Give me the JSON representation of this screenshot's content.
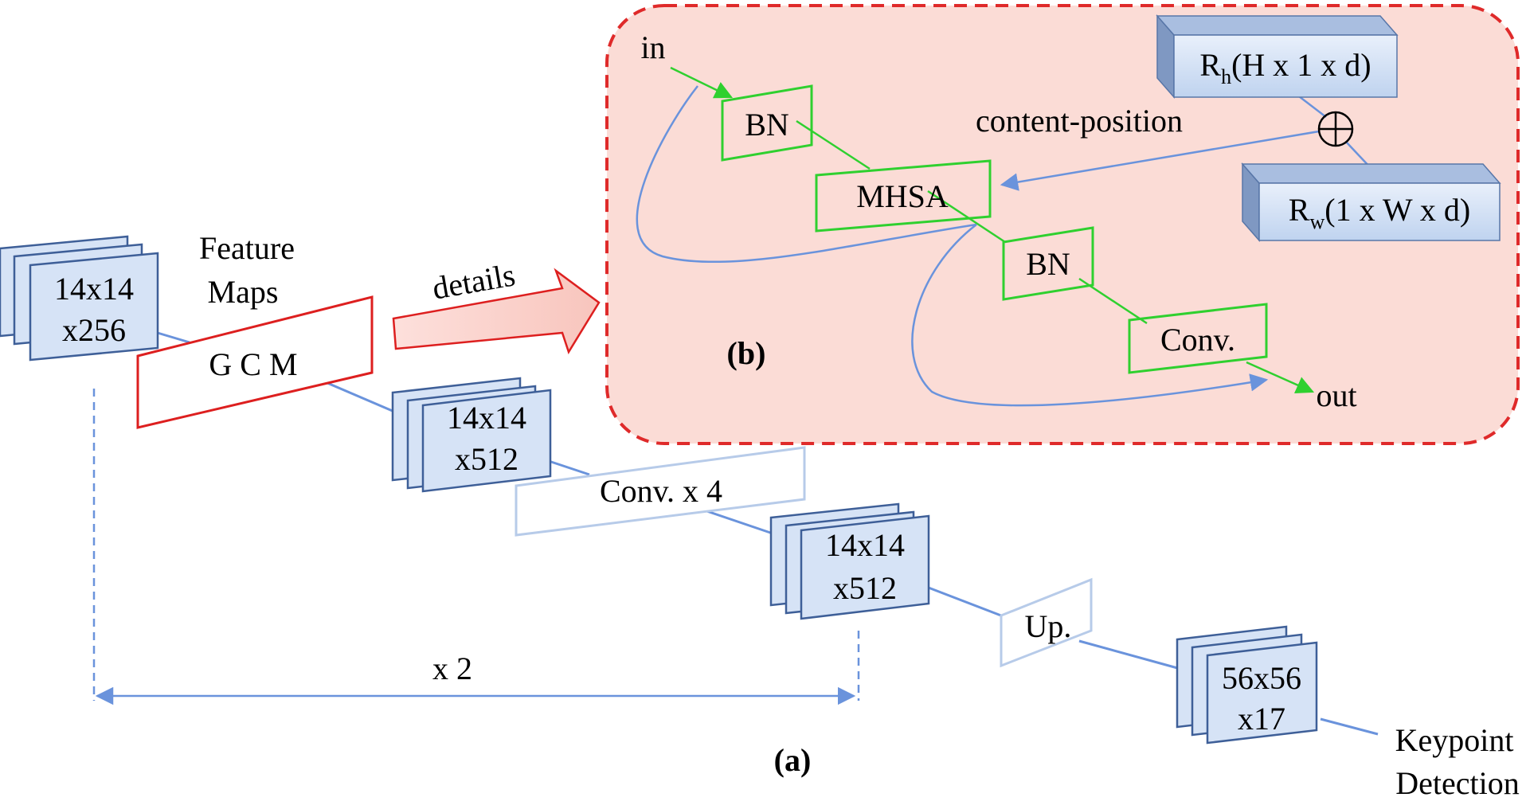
{
  "colors": {
    "block_fill": "#d6e3f6",
    "block_stroke": "#3e5f98",
    "block_top": "#a9bee0",
    "block_side": "#7f98c2",
    "blue_line": "#6a93dc",
    "faint_stroke": "#b7cbe9",
    "red": "#dd1f1f",
    "green": "#2fd02f",
    "pink_bg": "#fbdcd6",
    "dash_red": "#df2a2a"
  },
  "panel_a": {
    "label": "(a)",
    "stacks": {
      "input": {
        "line1": "14x14",
        "line2": "x256"
      },
      "gcm_out": {
        "line1": "14x14",
        "line2": "x512"
      },
      "conv_out": {
        "line1": "14x14",
        "line2": "x512"
      },
      "output": {
        "line1": "56x56",
        "line2": "x17"
      }
    },
    "feature_maps": {
      "line1": "Feature",
      "line2": "Maps"
    },
    "gcm_label": "G C M",
    "conv_label": "Conv. x 4",
    "up_label": "Up.",
    "details_label": "details",
    "repeat_label": "x 2",
    "keypoint": {
      "line1": "Keypoint",
      "line2": "Detection"
    }
  },
  "panel_b": {
    "label": "(b)",
    "in_label": "in",
    "out_label": "out",
    "bn1": "BN",
    "mhsa": "MHSA",
    "bn2": "BN",
    "conv": "Conv.",
    "content_position": "content-position",
    "rh": {
      "base": "R",
      "sub": "h",
      "rest": "(H x 1 x d)"
    },
    "rw": {
      "base": "R",
      "sub": "w",
      "rest": "(1 x W x d)"
    },
    "plus_symbol": "⊕"
  }
}
